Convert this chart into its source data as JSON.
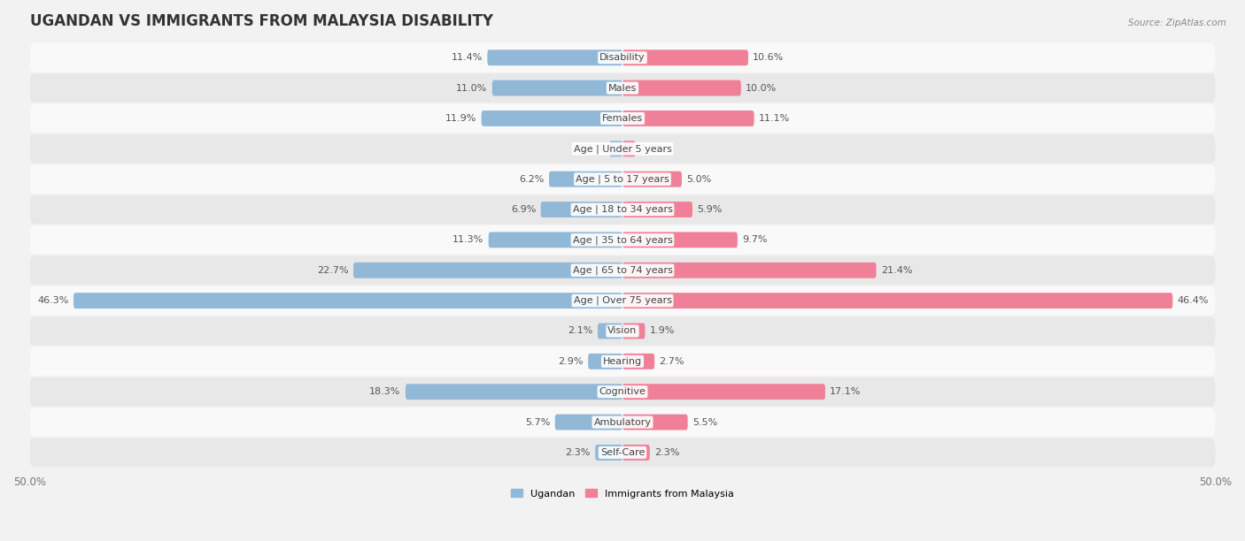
{
  "title": "UGANDAN VS IMMIGRANTS FROM MALAYSIA DISABILITY",
  "source": "Source: ZipAtlas.com",
  "categories": [
    "Disability",
    "Males",
    "Females",
    "Age | Under 5 years",
    "Age | 5 to 17 years",
    "Age | 18 to 34 years",
    "Age | 35 to 64 years",
    "Age | 65 to 74 years",
    "Age | Over 75 years",
    "Vision",
    "Hearing",
    "Cognitive",
    "Ambulatory",
    "Self-Care"
  ],
  "ugandan": [
    11.4,
    11.0,
    11.9,
    1.1,
    6.2,
    6.9,
    11.3,
    22.7,
    46.3,
    2.1,
    2.9,
    18.3,
    5.7,
    2.3
  ],
  "malaysia": [
    10.6,
    10.0,
    11.1,
    1.1,
    5.0,
    5.9,
    9.7,
    21.4,
    46.4,
    1.9,
    2.7,
    17.1,
    5.5,
    2.3
  ],
  "ugandan_color": "#92b8d8",
  "malaysia_color": "#f08098",
  "bar_height": 0.52,
  "max_val": 50.0,
  "bg_color": "#f2f2f2",
  "row_color_even": "#f9f9f9",
  "row_color_odd": "#e8e8e8",
  "title_fontsize": 12,
  "label_fontsize": 8.0,
  "value_fontsize": 8.0,
  "tick_fontsize": 8.5,
  "legend_labels": [
    "Ugandan",
    "Immigrants from Malaysia"
  ]
}
